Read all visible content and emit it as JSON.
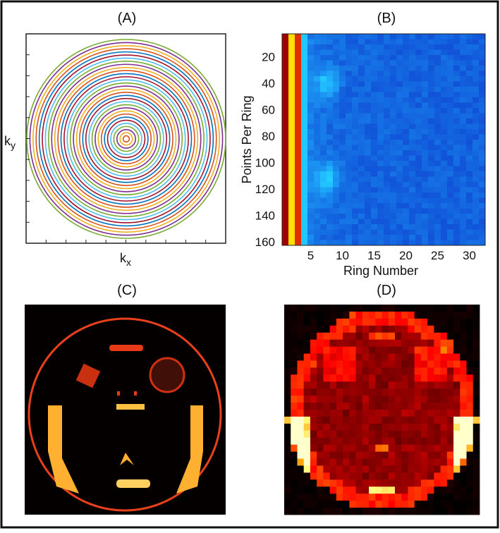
{
  "panels": [
    {
      "label": "(A)",
      "y_label": {
        "base": "k",
        "sub": "y"
      },
      "x_label": {
        "base": "k",
        "sub": "x"
      }
    },
    {
      "label": "(B)",
      "y_label": "Points Per Ring",
      "x_label": "Ring Number",
      "y_ticks": [
        "20",
        "40",
        "60",
        "80",
        "100",
        "120",
        "140",
        "160"
      ],
      "x_ticks": [
        "5",
        "10",
        "15",
        "20",
        "25",
        "30"
      ]
    },
    {
      "label": "(C)"
    },
    {
      "label": "(D)"
    }
  ]
}
